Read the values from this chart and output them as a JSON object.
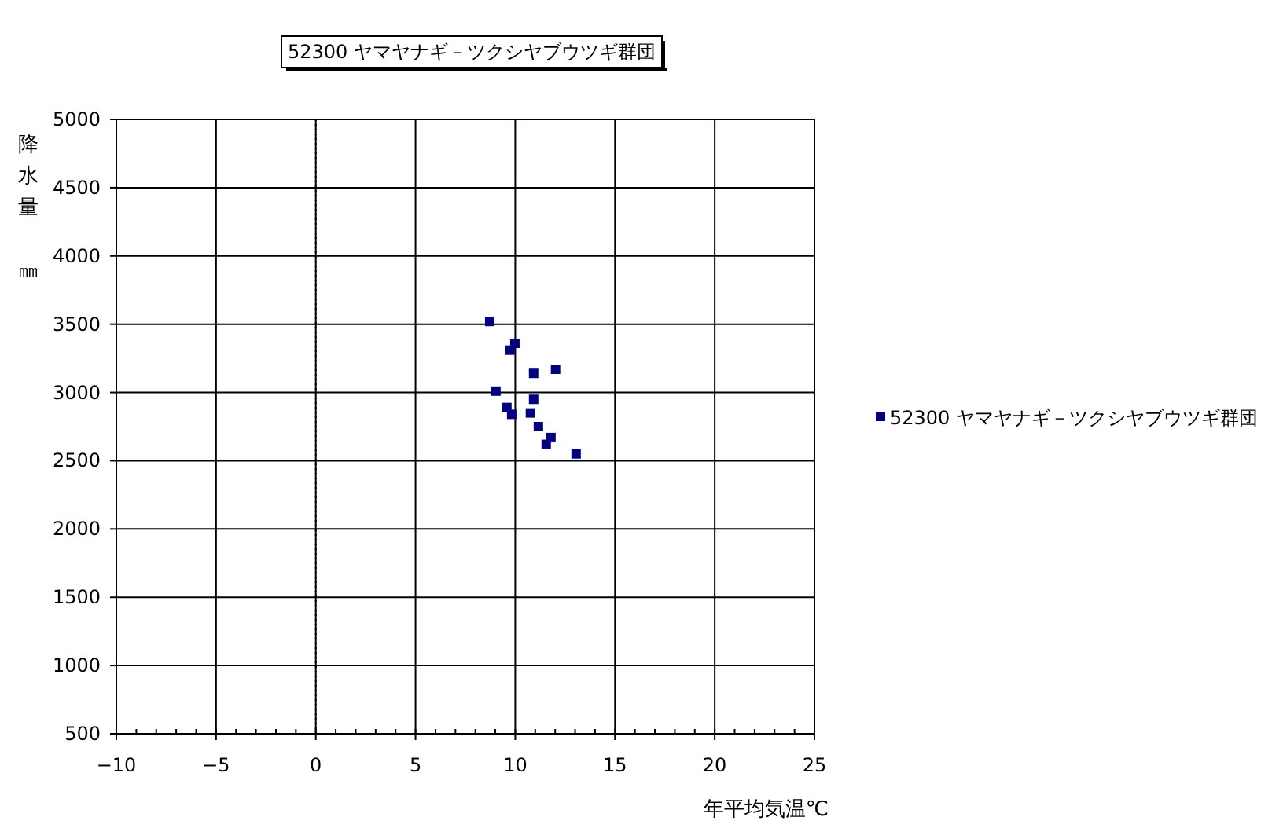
{
  "chart_data": {
    "type": "scatter",
    "title": "52300 ヤマヤナギ－ツクシヤブウツギ群団",
    "xlabel": "年平均気温℃",
    "ylabel": "降水量㎜",
    "xlim": [
      -10,
      25
    ],
    "xticks": [
      -10,
      -5,
      0,
      5,
      10,
      15,
      20,
      25
    ],
    "ylim": [
      500,
      5000
    ],
    "yticks": [
      500,
      1000,
      1500,
      2000,
      2500,
      3000,
      3500,
      4000,
      4500,
      5000
    ],
    "grid": true,
    "legend": "right",
    "marker": "square",
    "ref_lines": [
      {
        "axis": "x",
        "value": 0,
        "line_style": "dotted",
        "color": "#000000"
      }
    ],
    "series": [
      {
        "name": "52300 ヤマヤナギ－ツクシヤブウツギ群団",
        "color": "#000080",
        "x": [
          8.72,
          9.98,
          9.74,
          10.92,
          12.02,
          9.03,
          10.92,
          9.58,
          9.82,
          10.76,
          11.16,
          11.79,
          11.55,
          13.05
        ],
        "values": [
          3520,
          3360,
          3310,
          3140,
          3170,
          3010,
          2950,
          2890,
          2840,
          2850,
          2750,
          2670,
          2620,
          2550
        ]
      }
    ]
  }
}
